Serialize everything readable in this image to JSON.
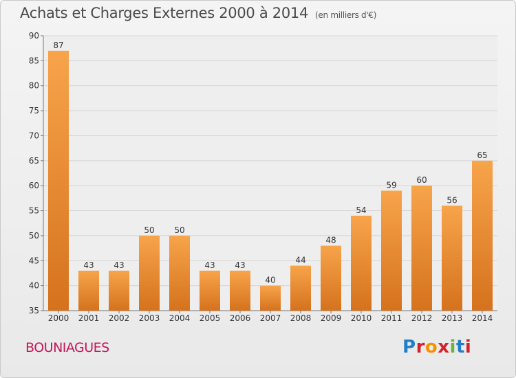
{
  "header": {
    "title": "Achats et Charges Externes 2000 à 2014",
    "unit": "(en milliers d'€)"
  },
  "footer": {
    "place": "BOUNIAGUES",
    "logo_text": "Proxiti"
  },
  "colors": {
    "bar_top": "#f7a44b",
    "bar_bottom": "#d5721d",
    "place_text": "#c2185b"
  },
  "chart_data": {
    "type": "bar",
    "title": "Achats et Charges Externes 2000 à 2014",
    "subtitle": "(en milliers d'€)",
    "categories": [
      "2000",
      "2001",
      "2002",
      "2003",
      "2004",
      "2005",
      "2006",
      "2007",
      "2008",
      "2009",
      "2010",
      "2011",
      "2012",
      "2013",
      "2014"
    ],
    "values": [
      87,
      43,
      43,
      50,
      50,
      43,
      43,
      40,
      44,
      48,
      54,
      59,
      60,
      56,
      65
    ],
    "ylim": [
      35,
      90
    ],
    "yticks": [
      35,
      40,
      45,
      50,
      55,
      60,
      65,
      70,
      75,
      80,
      85,
      90
    ],
    "grid": true,
    "legend": "none"
  }
}
